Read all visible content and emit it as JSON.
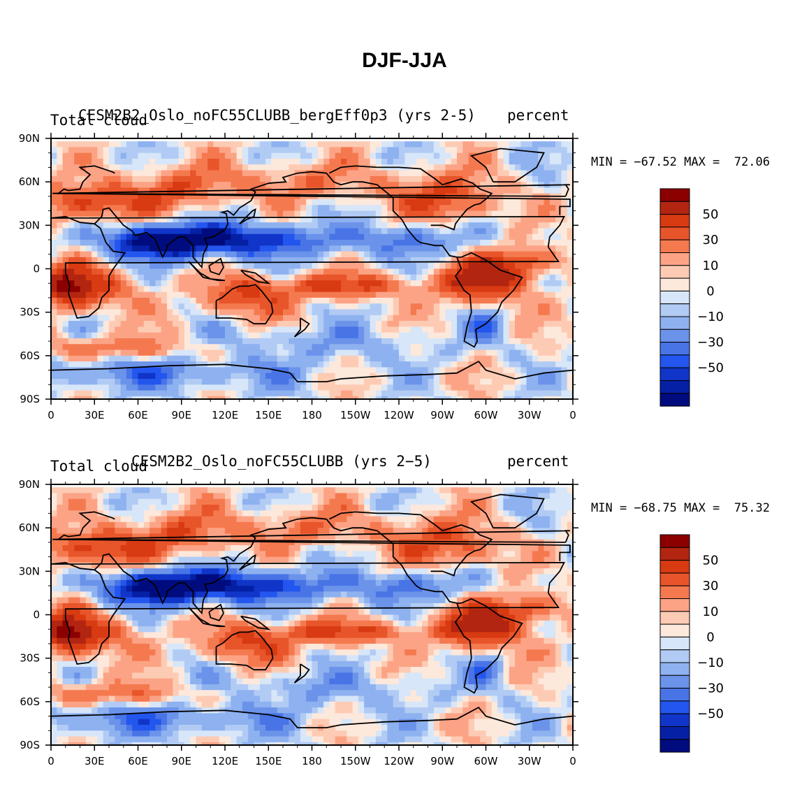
{
  "figure": {
    "title": "DJF-JJA",
    "ylabels": [
      "90N",
      "60N",
      "30N",
      "0",
      "30S",
      "60S",
      "90S"
    ],
    "xlabels": [
      "0",
      "30E",
      "60E",
      "90E",
      "120E",
      "150E",
      "180",
      "150W",
      "120W",
      "90W",
      "60W",
      "30W",
      "0"
    ],
    "colorbar_labels": [
      "50",
      "30",
      "10",
      "0",
      "−10",
      "−30",
      "−50"
    ],
    "colorbar_colors": [
      "#8b0000",
      "#b22510",
      "#d83a12",
      "#e8552a",
      "#f5794f",
      "#fca386",
      "#fdcbb3",
      "#fde8dc",
      "#d7e6f8",
      "#b1cbf4",
      "#8eb1f0",
      "#6b93ea",
      "#4874e6",
      "#2356ee",
      "#1035c8",
      "#0520a4",
      "#000c7e"
    ]
  },
  "panels": [
    {
      "left_title": "Total cloud",
      "center_title": "CESM2B2_Oslo_noFC55CLUBB_bergEff0p3 (yrs 2-5)",
      "right_title": "percent",
      "min_label": "MIN = ",
      "min_value": "−67.52",
      "max_label": "MAX = ",
      "max_value": "72.06"
    },
    {
      "left_title": "Total cloud",
      "center_title": "CESM2B2_Oslo_noFC55CLUBB (yrs 2−5)",
      "right_title": "percent",
      "min_label": "MIN = ",
      "min_value": "−68.75",
      "max_label": "MAX = ",
      "max_value": "75.32"
    }
  ]
}
